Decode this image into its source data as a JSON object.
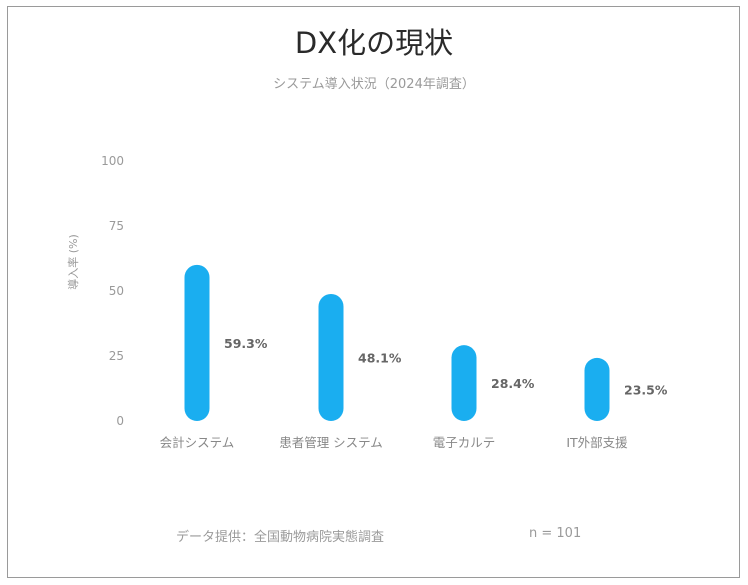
{
  "chart_data": {
    "type": "bar",
    "title": "DX化の現状",
    "subtitle": "システム導入状況（2024年調査）",
    "ylabel": "導入率 (%)",
    "xlabel": "",
    "ylim": [
      0,
      100
    ],
    "yticks": [
      0,
      25,
      50,
      75,
      100
    ],
    "categories": [
      "会計システム",
      "患者管理 システム",
      "電子カルテ",
      "IT外部支援"
    ],
    "values": [
      59.3,
      48.1,
      28.4,
      23.5
    ],
    "data_labels": [
      "59.3%",
      "48.1%",
      "28.4%",
      "23.5%"
    ],
    "bar_color": "#1AAEF0",
    "grid": false,
    "legend": "none"
  },
  "footer": {
    "source": "データ提供：全国動物病院実態調査",
    "n": "n = 101"
  }
}
